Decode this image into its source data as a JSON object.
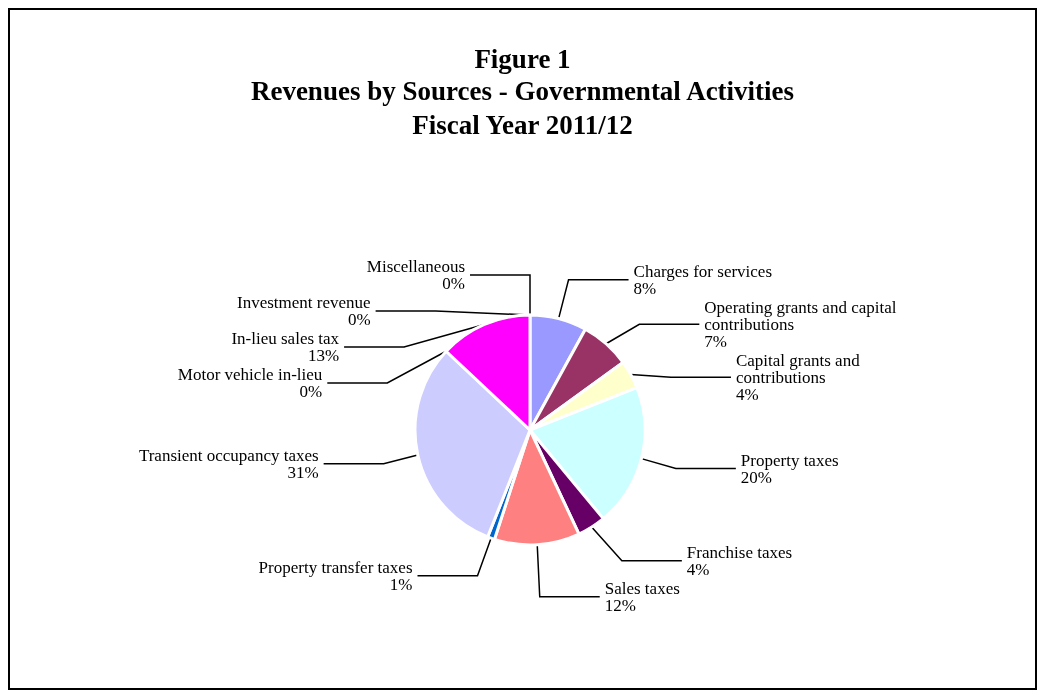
{
  "chart_data": {
    "type": "pie",
    "title": "Figure 1",
    "subtitle": "Revenues by Sources - Governmental Activities\nFiscal Year 2011/12",
    "categories": [
      "Charges for services",
      "Operating grants and capital contributions",
      "Capital grants and contributions",
      "Property taxes",
      "Franchise taxes",
      "Sales taxes",
      "Property transfer taxes",
      "Transient occupancy taxes",
      "Motor vehicle in-lieu",
      "In-lieu sales tax",
      "Miscellaneous",
      "Investment revenue"
    ],
    "values": [
      8,
      7,
      4,
      20,
      4,
      12,
      1,
      31,
      0,
      13,
      0,
      0
    ],
    "value_labels": [
      "8%",
      "7%",
      "4%",
      "20%",
      "4%",
      "12%",
      "1%",
      "31%",
      "0%",
      "13%",
      "0%",
      "0%"
    ],
    "colors": [
      "#9999ff",
      "#993366",
      "#ffffcc",
      "#ccffff",
      "#660066",
      "#ff8080",
      "#0066cc",
      "#ccccff",
      "#000080",
      "#ff00ff",
      "#ffff00",
      "#00ffff"
    ],
    "legend": false
  }
}
